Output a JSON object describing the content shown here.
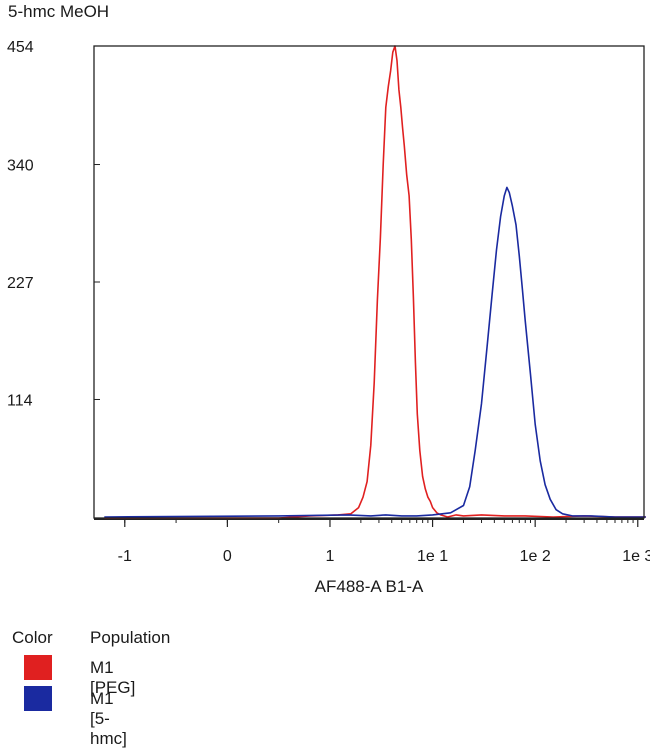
{
  "chart_data": {
    "type": "line",
    "title": "5-hmc MeOH",
    "xlabel": "AF488-A B1-A",
    "ylabel": "",
    "x_scale": "log-with-linear-segment",
    "x_ticks": [
      {
        "value": -1,
        "label": "-1"
      },
      {
        "value": 0,
        "label": "0"
      },
      {
        "value": 1,
        "label": "1"
      },
      {
        "value": 10,
        "label": "1e 1"
      },
      {
        "value": 100,
        "label": "1e 2"
      },
      {
        "value": 1000,
        "label": "1e 3"
      }
    ],
    "y_ticks": [
      114,
      227,
      340,
      454
    ],
    "ylim": [
      0,
      454
    ],
    "legend": {
      "color_header": "Color",
      "population_header": "Population",
      "placement": "bottom-left"
    },
    "series": [
      {
        "name": "M1 [PEG]",
        "color": "#e02020",
        "points": [
          [
            -1.2,
            0
          ],
          [
            0.5,
            0
          ],
          [
            0.8,
            2
          ],
          [
            1.2,
            3
          ],
          [
            1.6,
            4
          ],
          [
            1.9,
            10
          ],
          [
            2.1,
            20
          ],
          [
            2.3,
            35
          ],
          [
            2.5,
            70
          ],
          [
            2.7,
            130
          ],
          [
            2.9,
            210
          ],
          [
            3.1,
            270
          ],
          [
            3.3,
            340
          ],
          [
            3.5,
            395
          ],
          [
            3.7,
            415
          ],
          [
            3.9,
            430
          ],
          [
            4.1,
            448
          ],
          [
            4.3,
            454
          ],
          [
            4.5,
            440
          ],
          [
            4.7,
            412
          ],
          [
            4.9,
            395
          ],
          [
            5.1,
            375
          ],
          [
            5.3,
            358
          ],
          [
            5.6,
            330
          ],
          [
            5.9,
            310
          ],
          [
            6.2,
            268
          ],
          [
            6.5,
            212
          ],
          [
            6.8,
            150
          ],
          [
            7.1,
            100
          ],
          [
            7.5,
            65
          ],
          [
            8.0,
            40
          ],
          [
            8.5,
            28
          ],
          [
            9.0,
            20
          ],
          [
            9.5,
            16
          ],
          [
            10,
            10
          ],
          [
            11,
            5
          ],
          [
            12,
            3
          ],
          [
            14,
            1
          ],
          [
            17,
            3
          ],
          [
            20,
            2
          ],
          [
            30,
            3
          ],
          [
            50,
            2
          ],
          [
            80,
            2
          ],
          [
            150,
            1
          ],
          [
            300,
            2
          ],
          [
            600,
            1
          ],
          [
            1200,
            1
          ]
        ]
      },
      {
        "name": "M1 [5-hmc]",
        "color": "#1a2aa0",
        "points": [
          [
            -1.2,
            1
          ],
          [
            0.5,
            2
          ],
          [
            1.5,
            3
          ],
          [
            2.5,
            2
          ],
          [
            3.5,
            3
          ],
          [
            5,
            2
          ],
          [
            7,
            2
          ],
          [
            10,
            3
          ],
          [
            15,
            5
          ],
          [
            20,
            12
          ],
          [
            23,
            30
          ],
          [
            26,
            65
          ],
          [
            30,
            110
          ],
          [
            34,
            165
          ],
          [
            38,
            215
          ],
          [
            42,
            258
          ],
          [
            46,
            290
          ],
          [
            50,
            310
          ],
          [
            53,
            318
          ],
          [
            56,
            313
          ],
          [
            60,
            300
          ],
          [
            65,
            282
          ],
          [
            70,
            252
          ],
          [
            75,
            220
          ],
          [
            80,
            190
          ],
          [
            90,
            138
          ],
          [
            100,
            90
          ],
          [
            112,
            55
          ],
          [
            125,
            32
          ],
          [
            140,
            18
          ],
          [
            160,
            8
          ],
          [
            185,
            4
          ],
          [
            230,
            2
          ],
          [
            350,
            2
          ],
          [
            600,
            1
          ],
          [
            1200,
            1
          ]
        ]
      }
    ]
  }
}
